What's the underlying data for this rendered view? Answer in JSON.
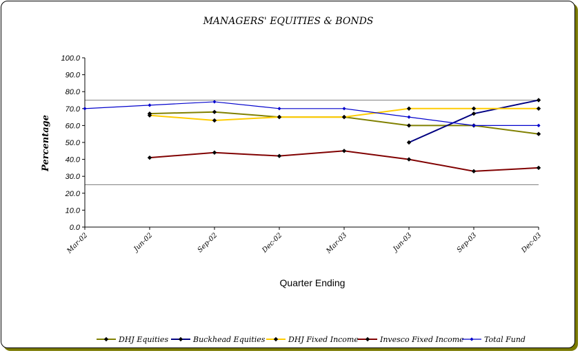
{
  "chart_data": {
    "type": "line",
    "title": "MANAGERS' EQUITIES & BONDS",
    "xlabel": "Quarter Ending",
    "ylabel": "Percentage",
    "ylim": [
      0,
      100
    ],
    "yticks": [
      "0.0",
      "10.0",
      "20.0",
      "30.0",
      "40.0",
      "50.0",
      "60.0",
      "70.0",
      "80.0",
      "90.0",
      "100.0"
    ],
    "categories": [
      "Mar-02",
      "Jun-02",
      "Sep-02",
      "Dec-02",
      "Mar-03",
      "Jun-03",
      "Sep-03",
      "Dec-03"
    ],
    "grid": [
      25,
      75
    ],
    "legend_position": "bottom",
    "series": [
      {
        "name": "DHJ Equities",
        "color": "#808000",
        "values": [
          null,
          67,
          68,
          65,
          65,
          60,
          60,
          55
        ]
      },
      {
        "name": "Buckhead Equities",
        "color": "#000080",
        "values": [
          null,
          null,
          null,
          null,
          null,
          50,
          67,
          75
        ]
      },
      {
        "name": "DHJ Fixed Income",
        "color": "#ffcc00",
        "values": [
          null,
          66,
          63,
          65,
          65,
          70,
          70,
          70
        ]
      },
      {
        "name": "Invesco Fixed Income",
        "color": "#800000",
        "values": [
          null,
          41,
          44,
          42,
          45,
          40,
          33,
          35
        ]
      },
      {
        "name": "Total Fund",
        "color": "#0000cc",
        "values": [
          70,
          72,
          74,
          70,
          70,
          65,
          60,
          60
        ]
      }
    ]
  }
}
